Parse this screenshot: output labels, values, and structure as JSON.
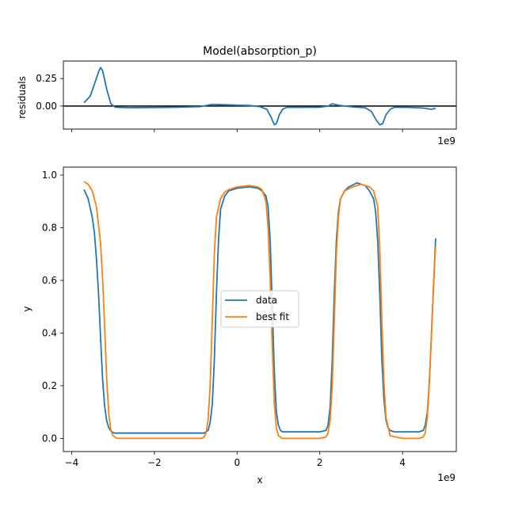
{
  "chart_data": [
    {
      "type": "line",
      "title": "Model(absorption_p)",
      "xlabel": "",
      "ylabel": "residuals",
      "xlim": [
        -4.2,
        5.3
      ],
      "ylim": [
        -0.21,
        0.41
      ],
      "x_offset_label": "1e9",
      "x_ticks": [
        -4,
        -2,
        0,
        2,
        4
      ],
      "y_ticks": [
        0.25,
        0.0
      ],
      "y_tick_labels": [
        "0.25",
        "0.00"
      ],
      "zero_line": 0,
      "series": [
        {
          "name": "residuals",
          "color": "#1f77b4",
          "x": [
            -3.7,
            -3.55,
            -3.45,
            -3.35,
            -3.3,
            -3.25,
            -3.15,
            -3.05,
            -2.95,
            -2.6,
            -2.0,
            -1.4,
            -0.9,
            -0.6,
            -0.3,
            0.0,
            0.3,
            0.55,
            0.72,
            0.82,
            0.9,
            0.95,
            1.02,
            1.1,
            1.2,
            1.5,
            2.0,
            2.2,
            2.3,
            2.5,
            2.8,
            3.1,
            3.25,
            3.35,
            3.45,
            3.52,
            3.6,
            3.7,
            3.8,
            4.1,
            4.5,
            4.7,
            4.8
          ],
          "values": [
            0.03,
            0.09,
            0.2,
            0.31,
            0.35,
            0.32,
            0.15,
            0.02,
            -0.01,
            -0.015,
            -0.013,
            -0.01,
            -0.005,
            0.015,
            0.012,
            0.008,
            0.005,
            -0.005,
            -0.03,
            -0.1,
            -0.17,
            -0.16,
            -0.08,
            -0.03,
            -0.012,
            -0.012,
            -0.01,
            0.0,
            0.02,
            0.005,
            -0.008,
            -0.015,
            -0.05,
            -0.12,
            -0.17,
            -0.16,
            -0.08,
            -0.03,
            -0.012,
            -0.012,
            -0.018,
            -0.03,
            -0.02
          ]
        }
      ]
    },
    {
      "type": "line",
      "title": "",
      "xlabel": "x",
      "ylabel": "y",
      "xlim": [
        -4.2,
        5.3
      ],
      "ylim": [
        -0.05,
        1.03
      ],
      "x_offset_label": "1e9",
      "x_ticks": [
        -4,
        -2,
        0,
        2,
        4
      ],
      "x_tick_labels": [
        "−4",
        "−2",
        "0",
        "2",
        "4"
      ],
      "y_ticks": [
        0.0,
        0.2,
        0.4,
        0.6,
        0.8,
        1.0
      ],
      "y_tick_labels": [
        "0.0",
        "0.2",
        "0.4",
        "0.6",
        "0.8",
        "1.0"
      ],
      "legend": {
        "placement": "center",
        "entries": [
          "data",
          "best fit"
        ]
      },
      "series": [
        {
          "name": "data",
          "color": "#1f77b4",
          "x": [
            -3.7,
            -3.6,
            -3.5,
            -3.45,
            -3.4,
            -3.35,
            -3.3,
            -3.25,
            -3.2,
            -3.15,
            -3.1,
            -3.05,
            -3.0,
            -2.95,
            -2.8,
            -2.0,
            -1.0,
            -0.8,
            -0.7,
            -0.65,
            -0.6,
            -0.55,
            -0.5,
            -0.45,
            -0.4,
            -0.3,
            -0.2,
            0.0,
            0.3,
            0.5,
            0.6,
            0.7,
            0.75,
            0.8,
            0.85,
            0.9,
            0.95,
            1.0,
            1.05,
            1.1,
            1.2,
            1.5,
            2.0,
            2.15,
            2.2,
            2.25,
            2.3,
            2.35,
            2.4,
            2.45,
            2.5,
            2.6,
            2.7,
            2.9,
            3.1,
            3.2,
            3.3,
            3.35,
            3.4,
            3.45,
            3.5,
            3.55,
            3.6,
            3.65,
            3.7,
            3.8,
            4.0,
            4.4,
            4.5,
            4.55,
            4.6,
            4.65,
            4.7,
            4.75,
            4.8
          ],
          "values": [
            0.945,
            0.91,
            0.84,
            0.78,
            0.68,
            0.55,
            0.38,
            0.22,
            0.12,
            0.065,
            0.04,
            0.028,
            0.022,
            0.02,
            0.02,
            0.02,
            0.02,
            0.02,
            0.03,
            0.06,
            0.13,
            0.3,
            0.55,
            0.75,
            0.87,
            0.92,
            0.94,
            0.95,
            0.955,
            0.95,
            0.94,
            0.92,
            0.88,
            0.75,
            0.5,
            0.25,
            0.1,
            0.05,
            0.03,
            0.025,
            0.025,
            0.025,
            0.025,
            0.03,
            0.05,
            0.12,
            0.3,
            0.55,
            0.75,
            0.86,
            0.91,
            0.94,
            0.955,
            0.97,
            0.96,
            0.94,
            0.91,
            0.86,
            0.75,
            0.55,
            0.3,
            0.15,
            0.07,
            0.04,
            0.03,
            0.025,
            0.025,
            0.025,
            0.03,
            0.05,
            0.1,
            0.22,
            0.4,
            0.58,
            0.76
          ]
        },
        {
          "name": "best fit",
          "color": "#ff7f0e",
          "x": [
            -3.7,
            -3.6,
            -3.5,
            -3.4,
            -3.3,
            -3.25,
            -3.2,
            -3.15,
            -3.1,
            -3.05,
            -3.0,
            -2.9,
            -2.0,
            -1.0,
            -0.85,
            -0.8,
            -0.75,
            -0.7,
            -0.65,
            -0.6,
            -0.55,
            -0.5,
            -0.4,
            -0.3,
            -0.2,
            0.0,
            0.3,
            0.5,
            0.6,
            0.7,
            0.75,
            0.8,
            0.85,
            0.9,
            0.95,
            1.0,
            1.1,
            1.5,
            2.0,
            2.15,
            2.2,
            2.25,
            2.3,
            2.35,
            2.4,
            2.45,
            2.5,
            2.6,
            2.8,
            3.0,
            3.2,
            3.3,
            3.4,
            3.45,
            3.5,
            3.55,
            3.6,
            3.7,
            4.0,
            4.4,
            4.5,
            4.55,
            4.6,
            4.65,
            4.7,
            4.75,
            4.8
          ],
          "values": [
            0.975,
            0.965,
            0.94,
            0.88,
            0.74,
            0.6,
            0.42,
            0.22,
            0.09,
            0.03,
            0.01,
            0.0,
            0.0,
            0.0,
            0.0,
            0.005,
            0.02,
            0.07,
            0.2,
            0.45,
            0.7,
            0.84,
            0.91,
            0.935,
            0.945,
            0.955,
            0.96,
            0.955,
            0.945,
            0.9,
            0.8,
            0.6,
            0.35,
            0.13,
            0.04,
            0.01,
            0.0,
            0.0,
            0.0,
            0.005,
            0.02,
            0.07,
            0.2,
            0.45,
            0.7,
            0.84,
            0.91,
            0.94,
            0.955,
            0.965,
            0.955,
            0.94,
            0.88,
            0.72,
            0.45,
            0.22,
            0.08,
            0.01,
            0.0,
            0.0,
            0.005,
            0.02,
            0.08,
            0.22,
            0.4,
            0.58,
            0.73
          ]
        }
      ]
    }
  ]
}
